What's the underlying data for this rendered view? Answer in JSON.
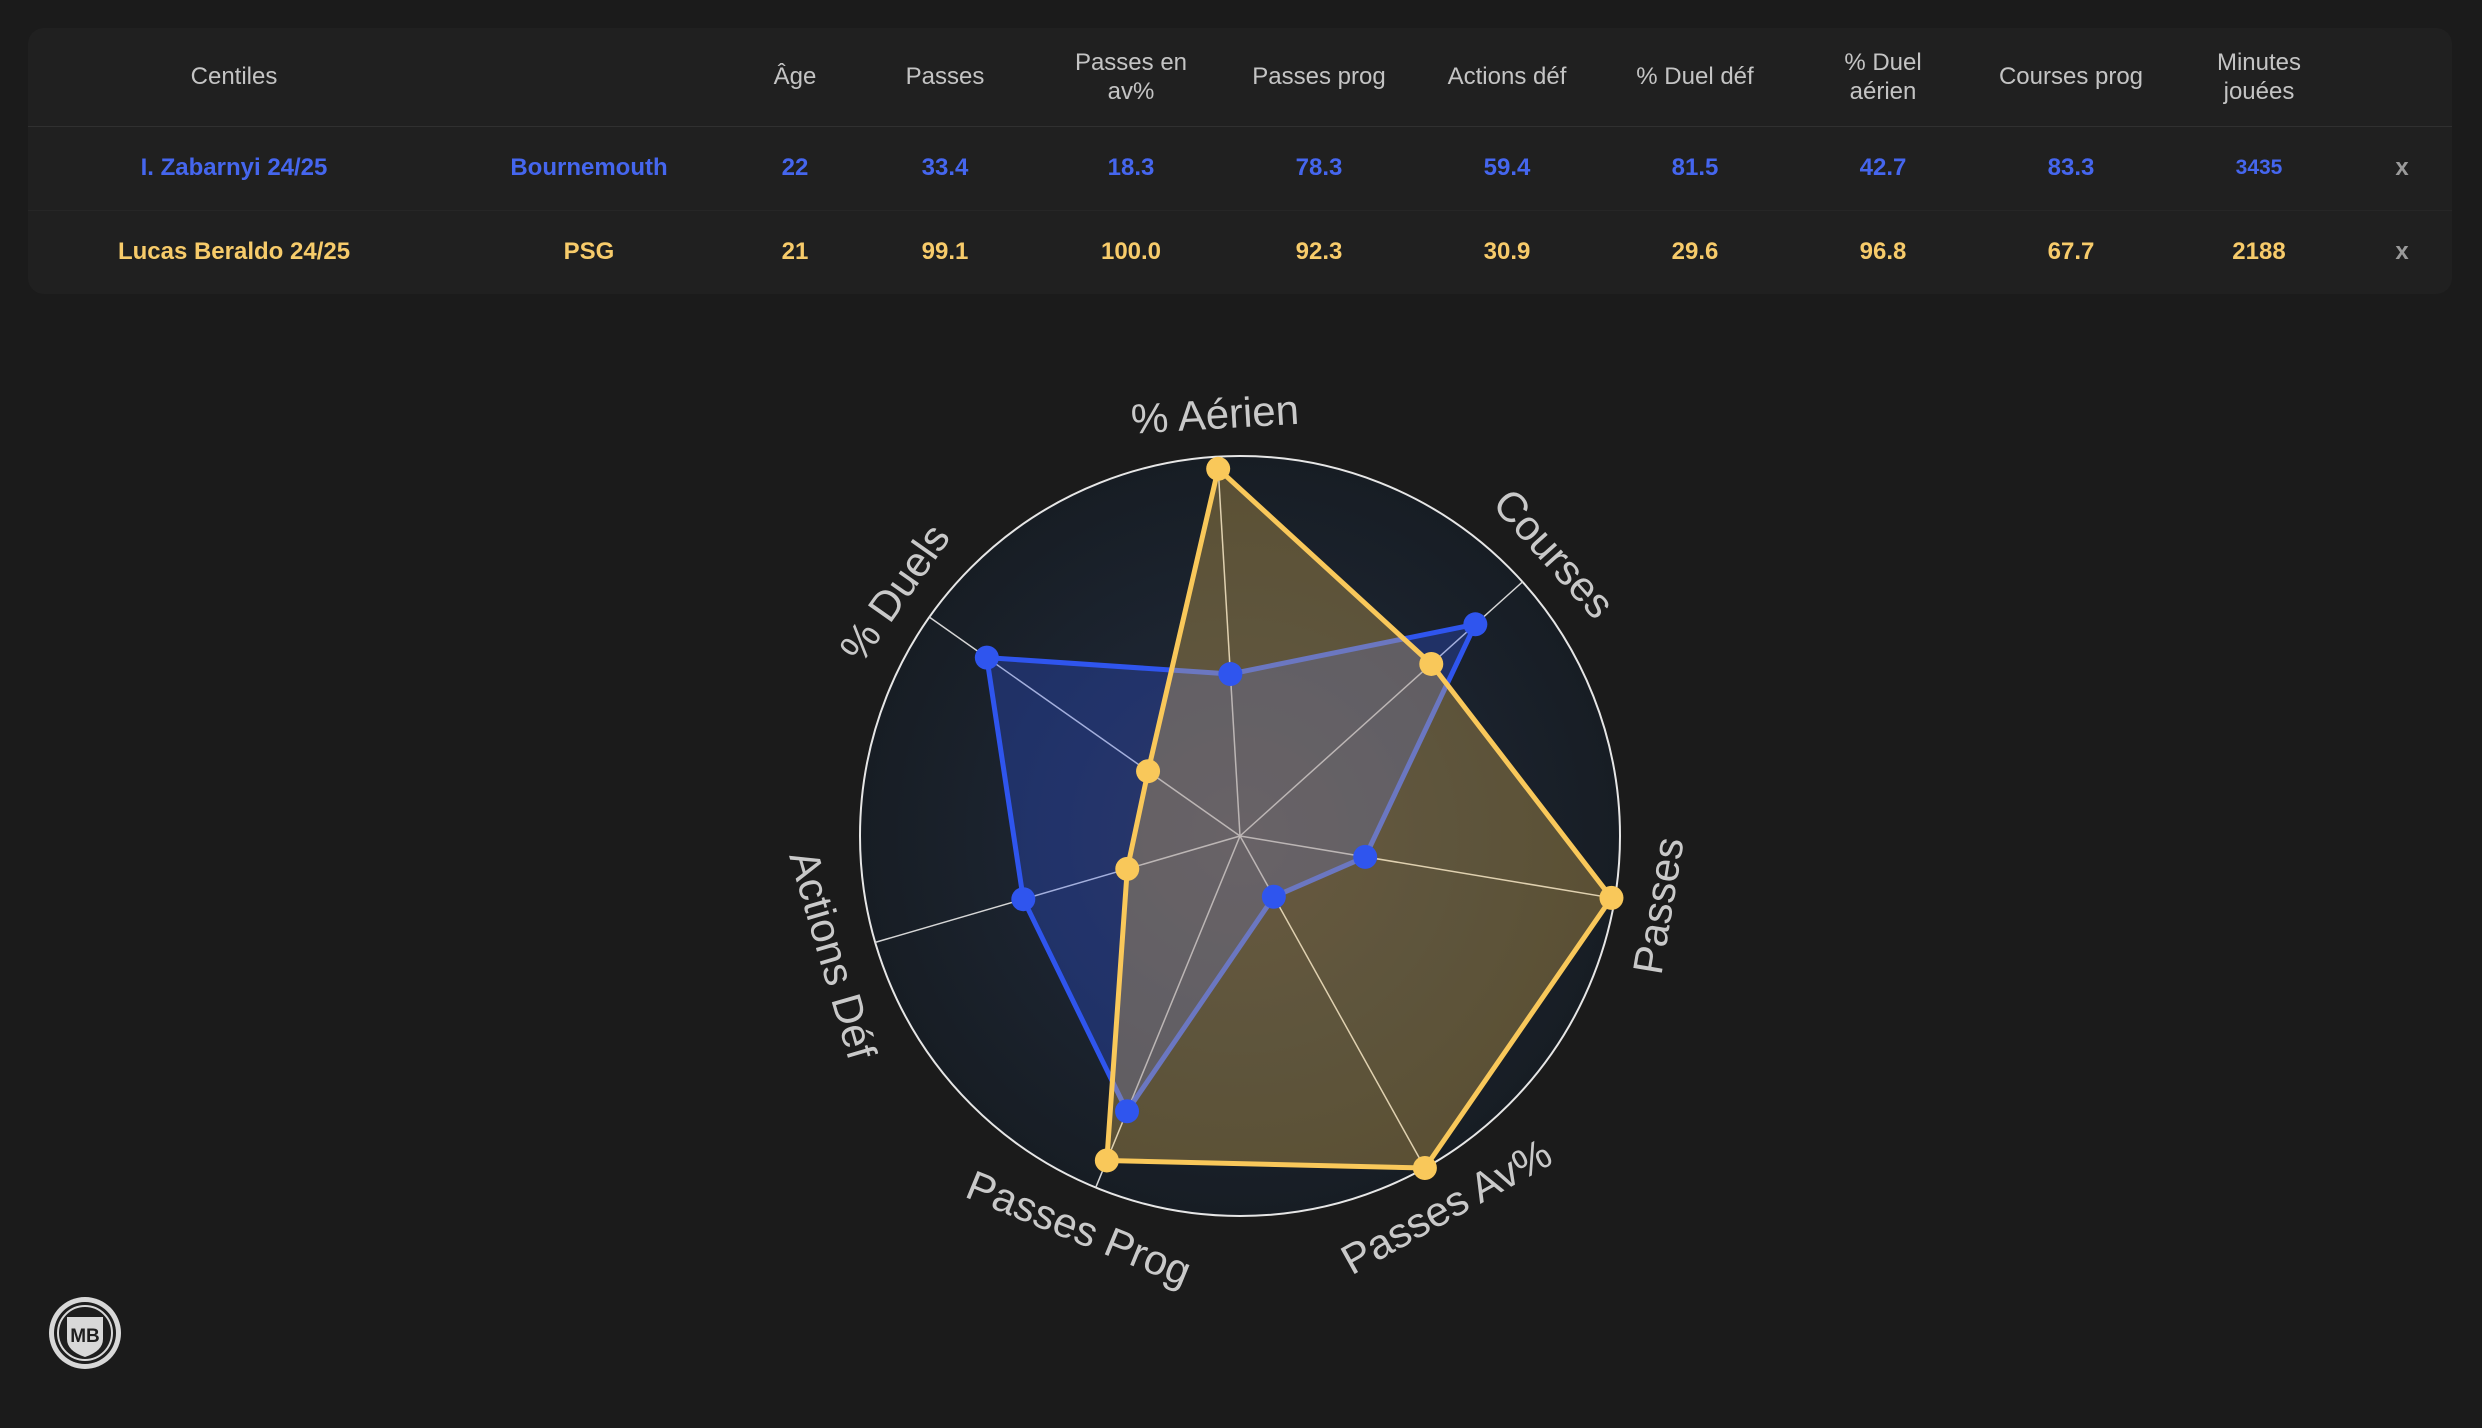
{
  "table": {
    "headers": [
      "Centiles",
      "",
      "Âge",
      "Passes",
      "Passes en\nav%",
      "Passes prog",
      "Actions déf",
      "% Duel déf",
      "% Duel\naérien",
      "Courses prog",
      "Minutes\njouées",
      ""
    ],
    "rows": [
      {
        "player": "I. Zabarnyi 24/25",
        "club": "Bournemouth",
        "age": "22",
        "passes": "33.4",
        "passes_av": "18.3",
        "passes_prog": "78.3",
        "actions_def": "59.4",
        "duel_def": "81.5",
        "duel_aerien": "42.7",
        "courses_prog": "83.3",
        "minutes": "3435",
        "remove": "x",
        "color": "#4566ee"
      },
      {
        "player": "Lucas Beraldo 24/25",
        "club": "PSG",
        "age": "21",
        "passes": "99.1",
        "passes_av": "100.0",
        "passes_prog": "92.3",
        "actions_def": "30.9",
        "duel_def": "29.6",
        "duel_aerien": "96.8",
        "courses_prog": "67.7",
        "minutes": "2188",
        "remove": "x",
        "color": "#f7cb6a"
      }
    ]
  },
  "chart_data": {
    "type": "radar",
    "axes": [
      "% Aérien",
      "Courses",
      "Passes",
      "Passes Av%",
      "Passes Prog",
      "Actions Déf",
      "% Duels"
    ],
    "range": [
      0,
      100
    ],
    "series": [
      {
        "name": "I. Zabarnyi 24/25",
        "color": "#2f55ee",
        "values": [
          42.7,
          83.3,
          33.4,
          18.3,
          78.3,
          59.4,
          81.5
        ]
      },
      {
        "name": "Lucas Beraldo 24/25",
        "color": "#f9c85a",
        "values": [
          96.8,
          67.7,
          99.1,
          100.0,
          92.3,
          30.9,
          29.6
        ]
      }
    ]
  },
  "logo": {
    "text": "MB",
    "icon": "mb-shield-logo"
  }
}
